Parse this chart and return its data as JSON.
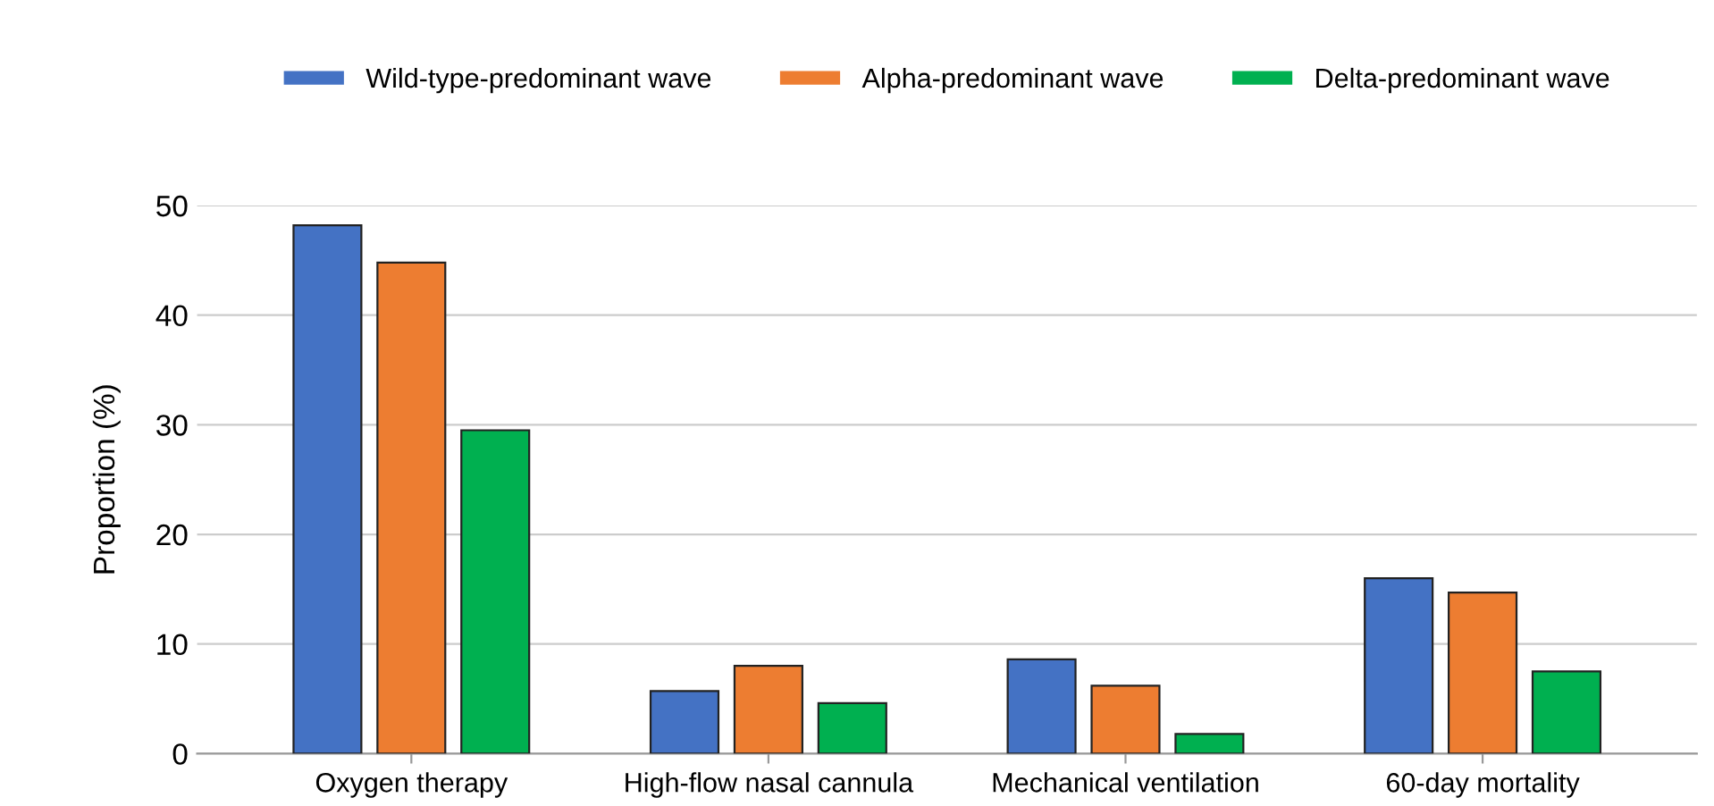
{
  "chart_data": {
    "type": "bar",
    "ylabel": "Proportion (%)",
    "categories": [
      "Oxygen therapy",
      "High-flow nasal cannula",
      "Mechanical ventilation",
      "60-day mortality"
    ],
    "series": [
      {
        "name": "Wild-type-predominant wave",
        "color": "#4472c4",
        "values": [
          48.2,
          5.7,
          8.6,
          16.0
        ]
      },
      {
        "name": "Alpha-predominant wave",
        "color": "#ed7d31",
        "values": [
          44.8,
          8.0,
          6.2,
          14.7
        ]
      },
      {
        "name": "Delta-predominant wave",
        "color": "#00b050",
        "values": [
          29.5,
          4.6,
          1.8,
          7.5
        ]
      }
    ],
    "ylim": [
      0,
      50
    ],
    "yticks": [
      0,
      10,
      20,
      30,
      40,
      50
    ],
    "grid": "y",
    "legend": "top"
  }
}
